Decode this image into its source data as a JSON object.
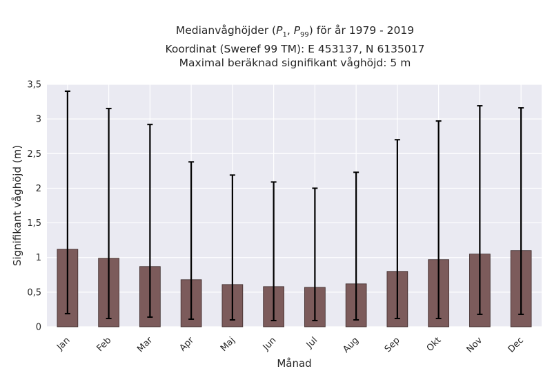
{
  "chart_data": {
    "type": "bar",
    "title_lines": [
      {
        "prefix": "Medianvåghöjder (",
        "p1": "P",
        "p1_sub": "1",
        "sep": ", ",
        "p2": "P",
        "p2_sub": "99",
        "suffix": ") för år 1979 - 2019"
      },
      {
        "text": "Koordinat (Sweref 99 TM): E 453137, N 6135017"
      },
      {
        "text": "Maximal beräknad signifikant våghöjd: 5 m"
      }
    ],
    "xlabel": "Månad",
    "ylabel": "Signifikant våghöjd (m)",
    "ylim": [
      0,
      3.5
    ],
    "yticks": [
      0,
      0.5,
      1,
      1.5,
      2,
      2.5,
      3,
      3.5
    ],
    "ytick_labels": [
      "0",
      "0,5",
      "1",
      "1,5",
      "2",
      "2,5",
      "3",
      "3,5"
    ],
    "categories": [
      "Jan",
      "Feb",
      "Mar",
      "Apr",
      "Maj",
      "Jun",
      "Jul",
      "Aug",
      "Sep",
      "Okt",
      "Nov",
      "Dec"
    ],
    "values": [
      1.12,
      0.99,
      0.87,
      0.68,
      0.61,
      0.58,
      0.57,
      0.62,
      0.8,
      0.97,
      1.05,
      1.1
    ],
    "error_low": [
      0.19,
      0.12,
      0.14,
      0.11,
      0.1,
      0.09,
      0.09,
      0.1,
      0.12,
      0.12,
      0.18,
      0.18
    ],
    "error_high": [
      3.4,
      3.15,
      2.92,
      2.38,
      2.19,
      2.09,
      2.0,
      2.23,
      2.7,
      2.97,
      3.19,
      3.16
    ],
    "grid": true,
    "colors": {
      "bar": "#7c5b5b",
      "bar_edge": "#3d2b2b",
      "error": "#000000",
      "plot_bg": "#eaeaf2",
      "grid": "#ffffff"
    }
  }
}
